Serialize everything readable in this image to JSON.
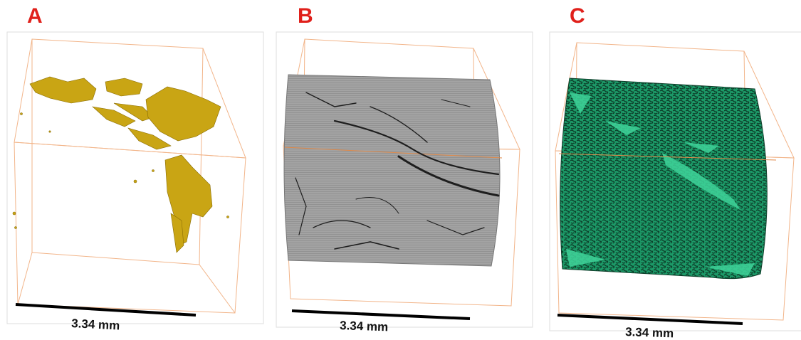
{
  "panels": [
    {
      "label": "A",
      "scale": "3.34 mm"
    },
    {
      "label": "B",
      "scale": "3.34 mm"
    },
    {
      "label": "C",
      "scale": "3.34 mm"
    }
  ]
}
